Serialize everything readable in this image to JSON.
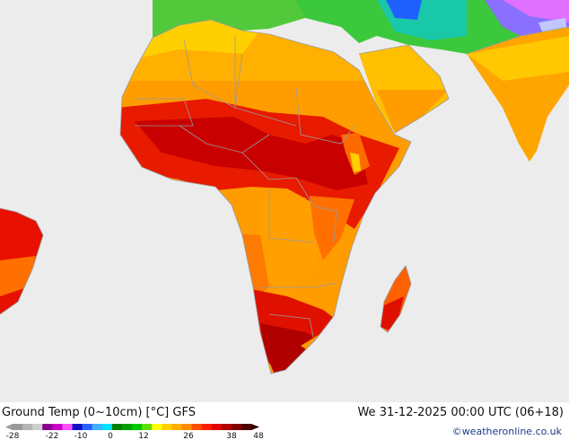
{
  "title": "Ground Temp (0~10cm) [°C] GFS",
  "datetime": "We 31-12-2025 00:00 UTC (06+18)",
  "credit": "©weatheronline.co.uk",
  "legend": {
    "ticks": [
      "-28",
      "-22",
      "-10",
      "0",
      "12",
      "26",
      "38",
      "48"
    ],
    "colors": [
      "#9a9a9a",
      "#b4b4b4",
      "#cfcfcf",
      "#8a0090",
      "#c800c8",
      "#ff50ff",
      "#1010c0",
      "#2a60ff",
      "#40b0ff",
      "#00e0ff",
      "#008000",
      "#00a000",
      "#00c800",
      "#60e000",
      "#ffff00",
      "#ffd000",
      "#ffb000",
      "#ff8c00",
      "#ff5000",
      "#ff2000",
      "#e00000",
      "#b00000",
      "#800000",
      "#500000"
    ]
  },
  "colors": {
    "sea": "#ececec",
    "border": "#9a9a9a"
  }
}
